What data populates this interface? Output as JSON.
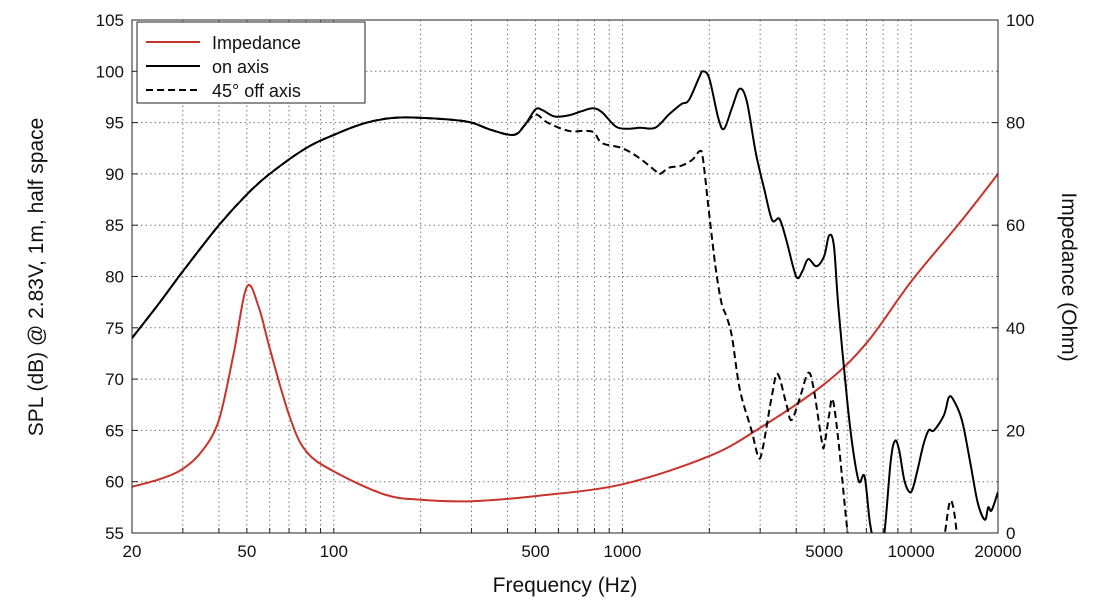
{
  "chart_data": {
    "type": "line",
    "title": "",
    "xlabel": "Frequency (Hz)",
    "ylabel": "SPL (dB) @ 2.83V, 1m, half space",
    "y2label": "Impedance (Ohm)",
    "xscale": "log",
    "xlim": [
      20,
      20000
    ],
    "ylim": [
      55,
      105
    ],
    "y2lim": [
      0,
      100
    ],
    "xticks": [
      20,
      50,
      100,
      500,
      1000,
      5000,
      10000,
      20000
    ],
    "xtick_labels": [
      "20",
      "50",
      "100",
      "500",
      "1000",
      "5000",
      "10000",
      "20000"
    ],
    "yticks": [
      55,
      60,
      65,
      70,
      75,
      80,
      85,
      90,
      95,
      100,
      105
    ],
    "y2ticks": [
      0,
      20,
      40,
      60,
      80,
      100
    ],
    "grid": true,
    "legend": "top-left",
    "series": [
      {
        "name": "Impedance",
        "axis": "right",
        "color": "#c8332b",
        "style": "solid",
        "x": [
          20,
          25,
          30,
          35,
          40,
          45,
          50,
          55,
          60,
          70,
          80,
          100,
          150,
          200,
          300,
          500,
          1000,
          2000,
          3000,
          5000,
          7000,
          10000,
          15000,
          20000
        ],
        "y": [
          9,
          10.5,
          12.5,
          16,
          22,
          35,
          48,
          44,
          36,
          23,
          16,
          12,
          7.5,
          6.5,
          6.2,
          7.2,
          9.5,
          15,
          20.5,
          29,
          37,
          49,
          61,
          70
        ]
      },
      {
        "name": "on axis",
        "axis": "left",
        "color": "#000000",
        "style": "solid",
        "x": [
          20,
          25,
          30,
          40,
          50,
          60,
          80,
          100,
          130,
          170,
          250,
          300,
          350,
          420,
          460,
          500,
          530,
          580,
          650,
          720,
          790,
          850,
          950,
          1050,
          1150,
          1300,
          1450,
          1600,
          1700,
          1850,
          1900,
          2000,
          2150,
          2250,
          2400,
          2550,
          2700,
          2900,
          3100,
          3300,
          3500,
          3700,
          4000,
          4200,
          4400,
          4700,
          5000,
          5200,
          5400,
          5600,
          6000,
          6300,
          6600,
          6900,
          7200,
          7500,
          8000,
          8500,
          8800,
          9100,
          9500,
          10000,
          10500,
          11000,
          11500,
          12000,
          13000,
          13500,
          14000,
          15000,
          16000,
          17000,
          18000,
          18500,
          19000,
          20000
        ],
        "y": [
          74,
          77.5,
          80.5,
          85,
          88,
          90,
          92.5,
          93.8,
          95,
          95.5,
          95.3,
          95,
          94.3,
          93.8,
          94.8,
          96.3,
          96.2,
          95.6,
          95.7,
          96.1,
          96.4,
          96,
          94.6,
          94.4,
          94.5,
          94.5,
          95.8,
          96.8,
          97.2,
          99.5,
          100,
          99.3,
          95.4,
          94.4,
          96.5,
          98.3,
          97,
          92,
          88.5,
          85.5,
          85.6,
          83.5,
          80,
          80.5,
          81.7,
          81,
          82,
          84,
          83,
          77,
          68,
          63,
          60,
          60.5,
          56,
          54,
          54,
          62,
          64,
          63,
          60,
          59,
          61,
          63.5,
          65,
          65,
          66.5,
          68.2,
          68,
          66,
          62,
          58,
          56.3,
          57.5,
          57.2,
          59
        ]
      },
      {
        "name": "45° off axis",
        "axis": "left",
        "color": "#000000",
        "style": "dashed",
        "x": [
          20,
          25,
          30,
          40,
          50,
          60,
          80,
          100,
          130,
          170,
          250,
          300,
          350,
          420,
          460,
          500,
          550,
          650,
          750,
          800,
          850,
          1000,
          1150,
          1300,
          1350,
          1450,
          1600,
          1750,
          1850,
          1900,
          2000,
          2100,
          2200,
          2300,
          2400,
          2550,
          2800,
          2950,
          3050,
          3300,
          3450,
          3700,
          3850,
          4100,
          4400,
          4600,
          4900,
          5000,
          5200,
          5350,
          5600,
          6000,
          6200
        ],
        "y": [
          74,
          77.5,
          80.5,
          85,
          88,
          90,
          92.5,
          93.8,
          95,
          95.5,
          95.3,
          95,
          94.3,
          93.8,
          94.8,
          95.8,
          95,
          94.2,
          94.2,
          94,
          93,
          92.5,
          91.5,
          90.3,
          90,
          90.6,
          90.8,
          91.4,
          92.2,
          91.5,
          86,
          81,
          77.5,
          76,
          74,
          69,
          65,
          62.5,
          63,
          68.5,
          70.5,
          67.5,
          66,
          68,
          70.6,
          69,
          64,
          63.5,
          66.5,
          68,
          64,
          55.5,
          53
        ]
      },
      {
        "name": "",
        "axis": "left",
        "color": "#000000",
        "style": "dashed",
        "x": [
          12800,
          13100,
          13600,
          14000,
          14400,
          14600
        ],
        "y": [
          53,
          55,
          58,
          57.5,
          55,
          53
        ]
      }
    ]
  }
}
